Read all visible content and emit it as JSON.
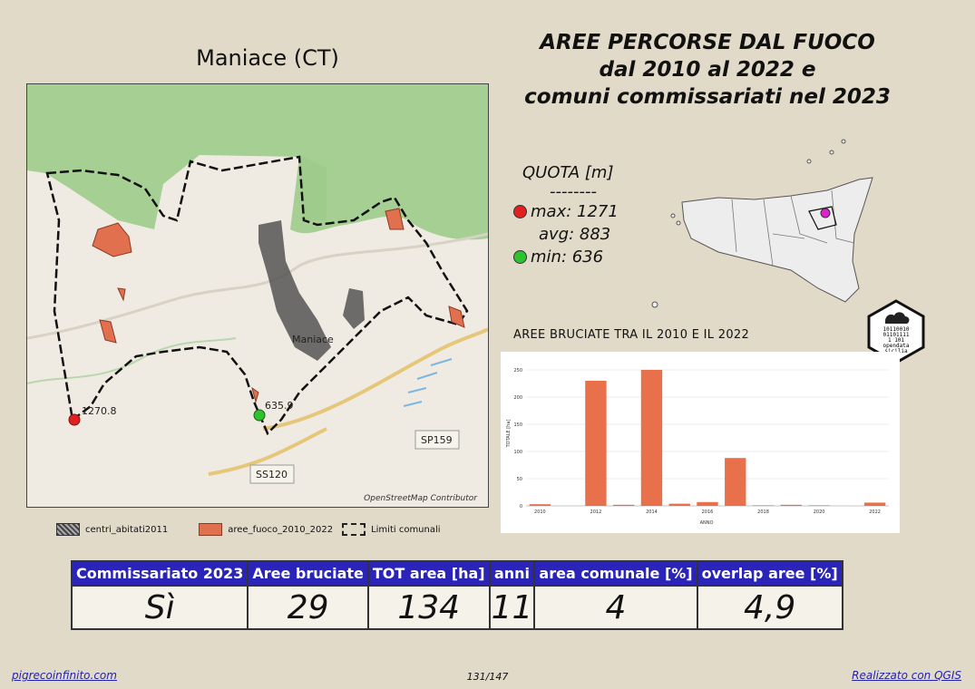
{
  "map": {
    "title": "Maniace (CT)",
    "attribution": "OpenStreetMap Contributor",
    "labels": {
      "town": "Maniace",
      "max_label": "1270.8",
      "min_label": "635.9",
      "road1": "SP159",
      "road2": "SS120"
    }
  },
  "main_title": {
    "line1": "AREE PERCORSE DAL FUOCO",
    "line2": "dal 2010 al 2022 e",
    "line3": "comuni commissariati nel 2023"
  },
  "quota": {
    "title": "QUOTA [m]",
    "separator": "--------",
    "max": "max: 1271",
    "avg": "avg: 883",
    "min": "min: 636",
    "max_color": "#e32020",
    "min_color": "#2ec22e"
  },
  "legend": {
    "centri": "centri_abitati2011",
    "fuoco": "aree_fuoco_2010_2022",
    "limiti": "Limiti comunali"
  },
  "logo": {
    "line1": "10110010",
    "line2": "01101111",
    "line3": "1  101",
    "line4": "opendata",
    "line5": "sicilia"
  },
  "chart_title": "AREE BRUCIATE TRA IL 2010 E IL 2022",
  "chart_data": {
    "type": "bar",
    "categories": [
      "2010",
      "2011",
      "2012",
      "2013",
      "2014",
      "2015",
      "2016",
      "2017",
      "2018",
      "2019",
      "2020",
      "2021",
      "2022"
    ],
    "values": [
      3,
      0,
      230,
      2,
      250,
      4,
      7,
      88,
      1,
      2,
      1,
      0,
      6
    ],
    "ylim": [
      0,
      250
    ],
    "yticks": [
      0,
      50,
      100,
      150,
      200,
      250
    ],
    "xtick_labels": [
      "2010",
      "2012",
      "2014",
      "2016",
      "2018",
      "2020",
      "2022"
    ],
    "xlabel": "ANNO",
    "ylabel": "TOTALE [ha]",
    "color": "#e8704a"
  },
  "table": {
    "headers": [
      "Commissariato 2023",
      "Aree bruciate",
      "TOT area [ha]",
      "anni",
      "area comunale [%]",
      "overlap aree [%]"
    ],
    "values": [
      "Sì",
      "29",
      "134",
      "11",
      "4",
      "4,9"
    ]
  },
  "footer": {
    "left": "pigrecoinfinito.com",
    "page": "131/147",
    "right": "Realizzato con QGIS"
  }
}
